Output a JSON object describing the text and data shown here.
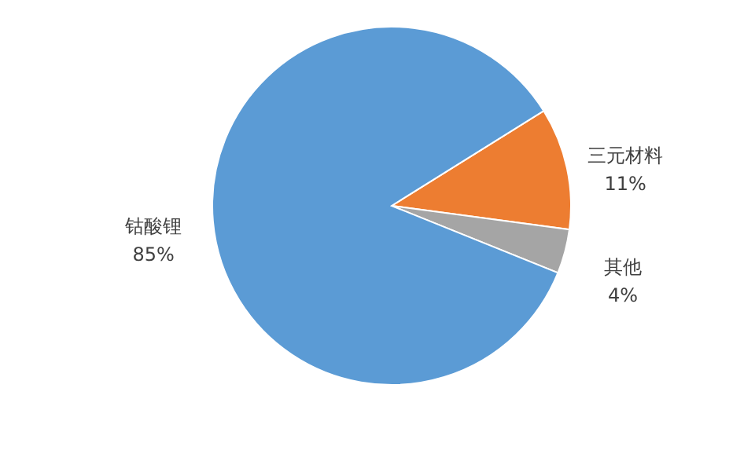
{
  "chart_data": {
    "type": "pie",
    "categories": [
      "三元材料",
      "其他",
      "钴酸锂"
    ],
    "values": [
      11,
      4,
      85
    ],
    "colors": [
      "#ed7d31",
      "#a5a5a5",
      "#5b9bd5"
    ],
    "value_labels": [
      "11%",
      "4%",
      "85%"
    ],
    "legend": false
  }
}
